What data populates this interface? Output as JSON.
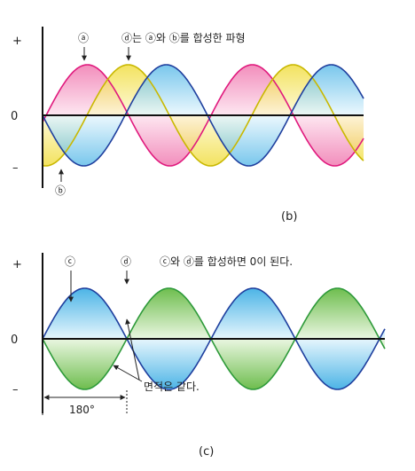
{
  "top": {
    "y_plus": "+",
    "y_zero": "0",
    "y_minus": "–",
    "label_a": "ⓐ",
    "label_d_caption": "ⓓ는 ⓐ와 ⓑ를 합성한 파형",
    "label_b": "ⓑ",
    "caption": "(b)"
  },
  "bottom": {
    "y_plus": "+",
    "y_zero": "0",
    "y_minus": "–",
    "label_c": "ⓒ",
    "label_d": "ⓓ",
    "label_sum_caption": "ⓒ와 ⓓ를 합성하면 0이 된다.",
    "area_note": "면적은 같다.",
    "phase_label": "180°",
    "caption": "(c)"
  },
  "colors": {
    "wave_a": "#e0197d",
    "wave_b": "#1f3f9e",
    "wave_d": "#c9b800",
    "wave_c": "#2e9a3a",
    "fill_a": "#f7a6cc",
    "fill_b": "#8fd3f2",
    "fill_d": "#f2e45a",
    "fill_c": "#9fd08a",
    "axis": "#111111"
  }
}
